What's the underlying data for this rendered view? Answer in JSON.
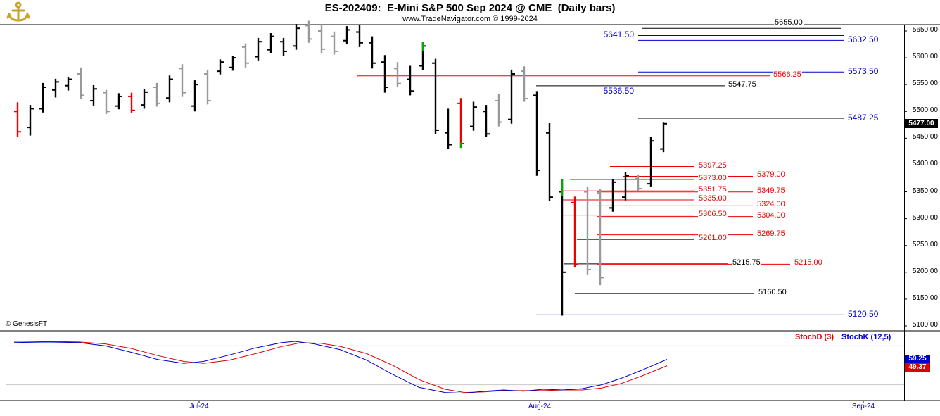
{
  "header": {
    "title": "ES-202409:  E-Mini S&P 500 Sep 2024 @ CME  (Daily bars)",
    "subtitle": "www.TradeNavigator.com © 1999-2024",
    "logo": "anchor-icon"
  },
  "watermark": "© GenesisFT",
  "price_axis": {
    "current_price": "5477.00",
    "ticks": [
      "5650.00",
      "5600.00",
      "5550.00",
      "5500.00",
      "5450.00",
      "5400.00",
      "5350.00",
      "5300.00",
      "5250.00",
      "5200.00",
      "5150.00",
      "5100.00"
    ]
  },
  "x_axis": {
    "labels": [
      {
        "text": "Jul-24",
        "x": 283
      },
      {
        "text": "Aug-24",
        "x": 767
      },
      {
        "text": "Sep-24",
        "x": 1227
      }
    ]
  },
  "stoch_panel": {
    "d_label": "StochD (3)",
    "k_label": "StochK (12,5)",
    "k_value": "59.25",
    "d_value": "49.37",
    "ref_lines": [
      80,
      20
    ]
  },
  "colors": {
    "k": "#000000",
    "g": "#999999",
    "r": "#ee0000",
    "b": "#0000cc",
    "green": "#00aa00",
    "grid": "#c8c8c8",
    "date": "#0000bb",
    "axis_text": "#000000",
    "stoch_k": "#0000cc",
    "stoch_d": "#dd0000",
    "badge_k_bg": "#0000cc",
    "badge_d_bg": "#dd0000",
    "price_badge_bg": "#000000",
    "logo_gold": "#c9a227"
  },
  "chart_data": {
    "type": "ohlc-bar",
    "title": "ES-202409: E-Mini S&P 500 Sep 2024 @ CME (Daily bars)",
    "y_range": [
      5100,
      5650
    ],
    "bars": [
      [
        25,
        5500,
        5517,
        5452,
        5462,
        "r"
      ],
      [
        43,
        5470,
        5512,
        5455,
        5505,
        "k"
      ],
      [
        61,
        5505,
        5553,
        5498,
        5545,
        "k"
      ],
      [
        79,
        5540,
        5561,
        5526,
        5555,
        "k"
      ],
      [
        97,
        5548,
        5564,
        5539,
        5560,
        "k"
      ],
      [
        115,
        5570,
        5582,
        5524,
        5530,
        "g"
      ],
      [
        133,
        5520,
        5549,
        5511,
        5542,
        "k"
      ],
      [
        151,
        5535,
        5540,
        5495,
        5500,
        "g"
      ],
      [
        169,
        5510,
        5534,
        5504,
        5528,
        "k"
      ],
      [
        187,
        5528,
        5535,
        5497,
        5502,
        "r"
      ],
      [
        205,
        5512,
        5541,
        5505,
        5536,
        "k"
      ],
      [
        223,
        5545,
        5553,
        5509,
        5515,
        "g"
      ],
      [
        241,
        5525,
        5567,
        5517,
        5560,
        "k"
      ],
      [
        259,
        5580,
        5588,
        5527,
        5535,
        "g"
      ],
      [
        277,
        5510,
        5558,
        5500,
        5550,
        "k"
      ],
      [
        295,
        5570,
        5578,
        5513,
        5520,
        "g"
      ],
      [
        313,
        5575,
        5597,
        5569,
        5592,
        "k"
      ],
      [
        331,
        5582,
        5604,
        5576,
        5600,
        "k"
      ],
      [
        349,
        5620,
        5627,
        5582,
        5590,
        "g"
      ],
      [
        367,
        5602,
        5637,
        5595,
        5630,
        "k"
      ],
      [
        385,
        5615,
        5646,
        5608,
        5640,
        "k"
      ],
      [
        403,
        5630,
        5637,
        5604,
        5612,
        "k"
      ],
      [
        421,
        5622,
        5663,
        5615,
        5655,
        "k"
      ],
      [
        439,
        5660,
        5669,
        5628,
        5635,
        "g"
      ],
      [
        457,
        5650,
        5662,
        5608,
        5616,
        "g"
      ],
      [
        475,
        5640,
        5649,
        5606,
        5612,
        "g"
      ],
      [
        493,
        5632,
        5659,
        5625,
        5652,
        "k"
      ],
      [
        511,
        5648,
        5662,
        5620,
        5628,
        "k"
      ],
      [
        529,
        5628,
        5640,
        5580,
        5590,
        "k"
      ],
      [
        547,
        5592,
        5605,
        5535,
        5545,
        "k"
      ],
      [
        565,
        5580,
        5592,
        5545,
        5552,
        "g"
      ],
      [
        583,
        5560,
        5585,
        5530,
        5538,
        "k"
      ],
      [
        601,
        5585,
        5630,
        5577,
        5622,
        "k",
        [
          5630,
          5612
        ]
      ],
      [
        619,
        5590,
        5598,
        5458,
        5465,
        "k"
      ],
      [
        637,
        5460,
        5505,
        5430,
        5438,
        "k"
      ],
      [
        655,
        5515,
        5525,
        5432,
        5440,
        "r",
        [
          5442,
          5432
        ]
      ],
      [
        673,
        5472,
        5518,
        5464,
        5508,
        "k"
      ],
      [
        691,
        5500,
        5512,
        5452,
        5458,
        "k"
      ],
      [
        709,
        5520,
        5532,
        5472,
        5480,
        "g"
      ],
      [
        727,
        5485,
        5578,
        5477,
        5570,
        "k"
      ],
      [
        745,
        5575,
        5584,
        5518,
        5524,
        "g"
      ],
      [
        763,
        5530,
        5538,
        5380,
        5390,
        "k"
      ],
      [
        781,
        5460,
        5478,
        5333,
        5340,
        "k"
      ],
      [
        799,
        5350,
        5373,
        5119,
        5200,
        "k",
        [
          5373,
          5342
        ]
      ],
      [
        817,
        5330,
        5341,
        5209,
        5215,
        "r"
      ],
      [
        835,
        5350,
        5360,
        5196,
        5205,
        "g"
      ],
      [
        853,
        5348,
        5355,
        5176,
        5190,
        "g"
      ],
      [
        871,
        5320,
        5374,
        5313,
        5368,
        "k"
      ],
      [
        889,
        5340,
        5387,
        5334,
        5380,
        "k"
      ],
      [
        907,
        5375,
        5381,
        5352,
        5356,
        "g"
      ],
      [
        925,
        5365,
        5453,
        5360,
        5445,
        "k"
      ],
      [
        943,
        5430,
        5479,
        5424,
        5477,
        "k"
      ]
    ],
    "levels": [
      {
        "text": "5655.00",
        "price": 5655,
        "x1": 912,
        "x2": 1196,
        "lc": "k",
        "lx": 1100,
        "col": "k",
        "dy": -13
      },
      {
        "text": "5641.50",
        "price": 5641.5,
        "x1": 907,
        "x2": 1200,
        "lc": "b",
        "lx": 902,
        "la": "r",
        "col": "b",
        "fs": 12
      },
      {
        "text": "5632.50",
        "price": 5632.5,
        "x1": 907,
        "x2": 1200,
        "lc": "b",
        "lx": 1204,
        "col": "b",
        "fs": 12
      },
      {
        "text": "5573.50",
        "price": 5573.5,
        "x1": 907,
        "x2": 1200,
        "lc": "b",
        "lx": 1204,
        "col": "b",
        "fs": 12
      },
      {
        "text": "5566.25",
        "price": 5566.25,
        "x1": 508,
        "x2": 1094,
        "lc": "r",
        "lx": 1098,
        "col": "r"
      },
      {
        "text": "5547.75",
        "price": 5547.75,
        "x1": 762,
        "x2": 1030,
        "lc": "k",
        "lx": 1034,
        "col": "k"
      },
      {
        "text": "5536.50",
        "price": 5536.5,
        "x1": 907,
        "x2": 1200,
        "lc": "b",
        "lx": 902,
        "la": "r",
        "col": "b",
        "fs": 12
      },
      {
        "text": "5487.25",
        "price": 5487.25,
        "x1": 907,
        "x2": 1200,
        "lc": "k",
        "lx": 1204,
        "col": "b",
        "fs": 12
      },
      {
        "text": "5397.25",
        "price": 5397.25,
        "x1": 867,
        "x2": 987,
        "lc": "r",
        "lx": 992,
        "col": "r"
      },
      {
        "text": "5379.00",
        "price": 5379,
        "x1": 885,
        "x2": 1070,
        "lc": "r",
        "lx": 1075,
        "col": "r"
      },
      {
        "text": "5373.00",
        "price": 5373,
        "x1": 810,
        "x2": 987,
        "lc": "r",
        "lx": 992,
        "col": "r"
      },
      {
        "text": "5351.75",
        "price": 5351.75,
        "x1": 800,
        "x2": 987,
        "lc": "r",
        "lx": 992,
        "col": "r"
      },
      {
        "text": "5349.75",
        "price": 5349.75,
        "x1": 848,
        "x2": 1070,
        "lc": "r",
        "lx": 1075,
        "col": "r"
      },
      {
        "text": "5335.00",
        "price": 5335,
        "x1": 800,
        "x2": 987,
        "lc": "r",
        "lx": 992,
        "col": "r"
      },
      {
        "text": "5324.00",
        "price": 5324,
        "x1": 848,
        "x2": 1070,
        "lc": "r",
        "lx": 1075,
        "col": "r"
      },
      {
        "text": "5306.50",
        "price": 5306.5,
        "x1": 800,
        "x2": 987,
        "lc": "r",
        "lx": 992,
        "col": "r"
      },
      {
        "text": "5304.00",
        "price": 5304,
        "x1": 848,
        "x2": 1070,
        "lc": "r",
        "lx": 1075,
        "col": "r"
      },
      {
        "text": "5261.00",
        "price": 5261,
        "x1": 820,
        "x2": 987,
        "lc": "r",
        "lx": 992,
        "col": "r"
      },
      {
        "text": "5269.75",
        "price": 5269.75,
        "x1": 848,
        "x2": 1070,
        "lc": "r",
        "lx": 1075,
        "col": "r"
      },
      {
        "text": "5215.75",
        "price": 5215.75,
        "x1": 802,
        "x2": 1035,
        "lc": "k",
        "lx": 1040,
        "col": "k"
      },
      {
        "text": "5215.00",
        "price": 5215,
        "x1": 848,
        "x2": 1123,
        "lc": "r",
        "lx": 1128,
        "col": "r"
      },
      {
        "text": "5160.50",
        "price": 5160.5,
        "x1": 817,
        "x2": 1072,
        "lc": "k",
        "lx": 1077,
        "col": "k"
      },
      {
        "text": "5120.50",
        "price": 5120.5,
        "x1": 762,
        "x2": 1200,
        "lc": "b",
        "lx": 1204,
        "col": "b",
        "fs": 12
      }
    ],
    "stoch": {
      "k": [
        [
          0,
          85
        ],
        [
          0.05,
          86
        ],
        [
          0.1,
          85
        ],
        [
          0.14,
          80
        ],
        [
          0.18,
          70
        ],
        [
          0.22,
          59
        ],
        [
          0.26,
          53
        ],
        [
          0.29,
          56
        ],
        [
          0.33,
          66
        ],
        [
          0.37,
          77
        ],
        [
          0.41,
          85
        ],
        [
          0.43,
          87
        ],
        [
          0.46,
          83
        ],
        [
          0.5,
          74
        ],
        [
          0.54,
          58
        ],
        [
          0.58,
          36
        ],
        [
          0.62,
          16
        ],
        [
          0.66,
          8
        ],
        [
          0.69,
          7
        ],
        [
          0.72,
          10
        ],
        [
          0.75,
          12
        ],
        [
          0.78,
          10
        ],
        [
          0.81,
          13
        ],
        [
          0.84,
          12
        ],
        [
          0.87,
          14
        ],
        [
          0.9,
          20
        ],
        [
          0.93,
          30
        ],
        [
          0.96,
          42
        ],
        [
          1,
          59.25
        ]
      ],
      "d": [
        [
          0,
          87
        ],
        [
          0.05,
          87
        ],
        [
          0.1,
          86
        ],
        [
          0.14,
          83
        ],
        [
          0.18,
          76
        ],
        [
          0.22,
          65
        ],
        [
          0.26,
          56
        ],
        [
          0.29,
          53
        ],
        [
          0.33,
          58
        ],
        [
          0.37,
          68
        ],
        [
          0.41,
          79
        ],
        [
          0.44,
          85
        ],
        [
          0.47,
          84
        ],
        [
          0.5,
          79
        ],
        [
          0.54,
          68
        ],
        [
          0.58,
          50
        ],
        [
          0.62,
          28
        ],
        [
          0.66,
          13
        ],
        [
          0.69,
          8
        ],
        [
          0.72,
          9
        ],
        [
          0.75,
          11
        ],
        [
          0.78,
          11
        ],
        [
          0.81,
          11
        ],
        [
          0.84,
          12
        ],
        [
          0.87,
          12
        ],
        [
          0.9,
          15
        ],
        [
          0.93,
          22
        ],
        [
          0.96,
          33
        ],
        [
          1,
          49.37
        ]
      ],
      "range": [
        0,
        100
      ]
    }
  }
}
